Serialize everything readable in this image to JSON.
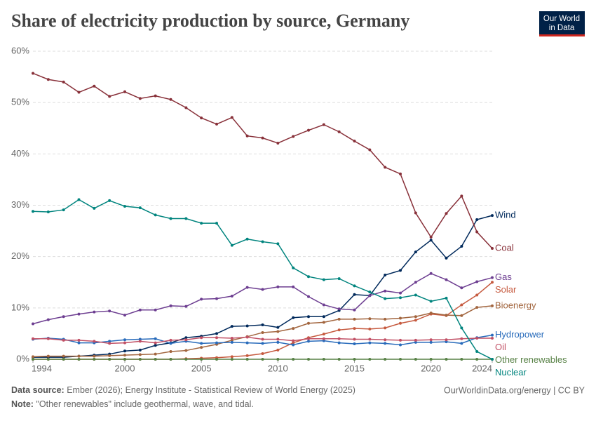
{
  "chart_data": {
    "type": "line",
    "title": "Share of electricity production by source, Germany",
    "logo": [
      "Our World",
      "in Data"
    ],
    "x": [
      1994,
      1995,
      1996,
      1997,
      1998,
      1999,
      2000,
      2001,
      2002,
      2003,
      2004,
      2005,
      2006,
      2007,
      2008,
      2009,
      2010,
      2011,
      2012,
      2013,
      2014,
      2015,
      2016,
      2017,
      2018,
      2019,
      2020,
      2021,
      2022,
      2023,
      2024
    ],
    "xlim": [
      1994,
      2024
    ],
    "xticks": [
      1994,
      2000,
      2005,
      2010,
      2015,
      2020,
      2024
    ],
    "ylim": [
      0,
      60
    ],
    "yticks": [
      {
        "value": 0,
        "label": "0%"
      },
      {
        "value": 10,
        "label": "10%"
      },
      {
        "value": 20,
        "label": "20%"
      },
      {
        "value": 30,
        "label": "30%"
      },
      {
        "value": 40,
        "label": "40%"
      },
      {
        "value": 50,
        "label": "50%"
      },
      {
        "value": 60,
        "label": "60%"
      }
    ],
    "grid": true,
    "series": [
      {
        "name": "Wind",
        "color": "#00295b",
        "values": [
          0.4,
          0.4,
          0.4,
          0.6,
          0.8,
          1.0,
          1.6,
          1.8,
          2.7,
          3.2,
          4.2,
          4.5,
          5.0,
          6.4,
          6.5,
          6.7,
          6.2,
          8.1,
          8.3,
          8.3,
          9.5,
          12.6,
          12.4,
          16.4,
          17.3,
          20.9,
          23.2,
          19.7,
          22.0,
          27.2,
          28.0
        ]
      },
      {
        "name": "Coal",
        "color": "#883039",
        "values": [
          55.7,
          54.5,
          54.0,
          52.0,
          53.2,
          51.2,
          52.1,
          50.8,
          51.3,
          50.6,
          49.0,
          47.0,
          45.8,
          47.1,
          43.5,
          43.1,
          42.1,
          43.4,
          44.6,
          45.7,
          44.3,
          42.5,
          40.8,
          37.4,
          36.1,
          28.5,
          23.8,
          28.4,
          31.8,
          24.8,
          21.6
        ]
      },
      {
        "name": "Gas",
        "color": "#6d3e91",
        "values": [
          6.9,
          7.7,
          8.3,
          8.8,
          9.2,
          9.4,
          8.6,
          9.6,
          9.6,
          10.4,
          10.3,
          11.7,
          11.8,
          12.3,
          14.0,
          13.6,
          14.1,
          14.1,
          12.2,
          10.6,
          9.8,
          9.6,
          12.4,
          13.3,
          12.9,
          15.0,
          16.7,
          15.5,
          13.9,
          15.1,
          15.9
        ]
      },
      {
        "name": "Solar",
        "color": "#c65a3f",
        "values": [
          0,
          0,
          0,
          0,
          0,
          0,
          0,
          0,
          0,
          0,
          0.1,
          0.2,
          0.3,
          0.5,
          0.7,
          1.1,
          1.8,
          3.2,
          4.2,
          4.9,
          5.7,
          6.0,
          5.9,
          6.1,
          7.0,
          7.6,
          8.8,
          8.5,
          10.6,
          12.5,
          15.0
        ]
      },
      {
        "name": "Bioenergy",
        "color": "#a2653e",
        "values": [
          0.5,
          0.6,
          0.6,
          0.6,
          0.6,
          0.7,
          0.8,
          0.9,
          1.0,
          1.5,
          1.7,
          2.3,
          2.9,
          3.7,
          4.4,
          5.2,
          5.4,
          6.0,
          7.0,
          7.2,
          7.8,
          7.8,
          7.9,
          7.8,
          8.0,
          8.3,
          9.0,
          8.6,
          8.5,
          10.1,
          10.4
        ]
      },
      {
        "name": "Hydropower",
        "color": "#286bbb",
        "values": [
          3.9,
          4.1,
          3.9,
          3.2,
          3.2,
          3.5,
          3.8,
          3.9,
          4.0,
          3.1,
          3.5,
          3.1,
          3.2,
          3.3,
          3.2,
          3.1,
          3.3,
          2.8,
          3.5,
          3.6,
          3.2,
          3.0,
          3.2,
          3.1,
          2.8,
          3.3,
          3.3,
          3.4,
          3.1,
          4.2,
          4.7
        ]
      },
      {
        "name": "Oil",
        "color": "#c15065",
        "values": [
          4.0,
          4.0,
          3.7,
          3.7,
          3.5,
          3.1,
          3.2,
          3.5,
          3.2,
          3.7,
          3.8,
          4.2,
          4.2,
          4.1,
          4.3,
          3.9,
          3.9,
          3.6,
          4.0,
          4.0,
          4.0,
          3.9,
          3.9,
          3.8,
          3.7,
          3.7,
          3.8,
          3.8,
          4.0,
          4.1,
          4.1
        ]
      },
      {
        "name": "Other renewables",
        "color": "#578145",
        "values": [
          0,
          0,
          0,
          0,
          0,
          0,
          0,
          0,
          0,
          0,
          0,
          0,
          0,
          0,
          0,
          0,
          0,
          0,
          0,
          0,
          0,
          0,
          0,
          0,
          0,
          0,
          0,
          0,
          0,
          0,
          0
        ]
      },
      {
        "name": "Nuclear",
        "color": "#00847e",
        "values": [
          28.8,
          28.7,
          29.1,
          31.1,
          29.4,
          30.9,
          29.8,
          29.5,
          28.1,
          27.4,
          27.4,
          26.5,
          26.5,
          22.2,
          23.4,
          22.9,
          22.5,
          17.8,
          16.1,
          15.5,
          15.7,
          14.3,
          13.1,
          11.8,
          12.0,
          12.5,
          11.3,
          11.9,
          6.1,
          1.5,
          0.0
        ]
      }
    ],
    "source_label": "Data source:",
    "source": "Ember (2026); Energy Institute - Statistical Review of World Energy (2025)",
    "credit": "OurWorldinData.org/energy | CC BY",
    "note_label": "Note:",
    "note": "\"Other renewables\" include geothermal, wave, and tidal."
  }
}
